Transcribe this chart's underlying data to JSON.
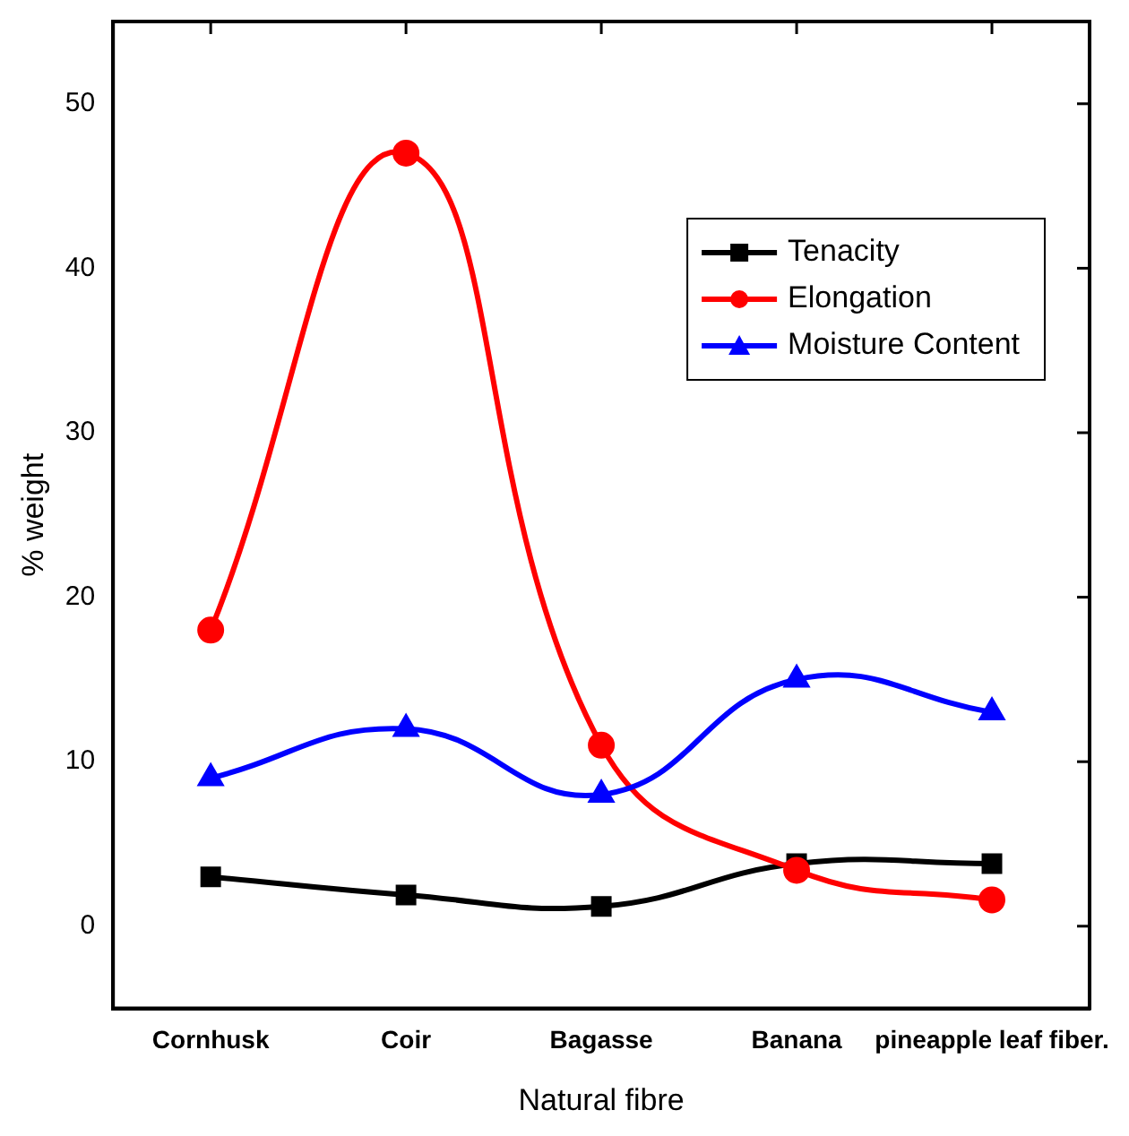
{
  "chart_data": {
    "type": "line",
    "xlabel": "Natural fibre",
    "ylabel": "% weight",
    "categories": [
      "Cornhusk",
      "Coir",
      "Bagasse",
      "Banana",
      "pineapple leaf fiber."
    ],
    "series": [
      {
        "name": "Tenacity",
        "color": "#000000",
        "marker": "square",
        "values": [
          3,
          1.9,
          1.2,
          3.8,
          3.8
        ]
      },
      {
        "name": "Elongation",
        "color": "#ff0000",
        "marker": "circle",
        "values": [
          18,
          47,
          11,
          3.4,
          1.6
        ]
      },
      {
        "name": "Moisture Content",
        "color": "#0000ff",
        "marker": "triangle",
        "values": [
          9,
          12,
          8,
          15,
          13
        ]
      }
    ],
    "ylim": [
      -5,
      55
    ],
    "yticks": [
      0,
      10,
      20,
      30,
      40,
      50
    ],
    "grid": false,
    "legend": "top right",
    "line_style": "solid"
  }
}
